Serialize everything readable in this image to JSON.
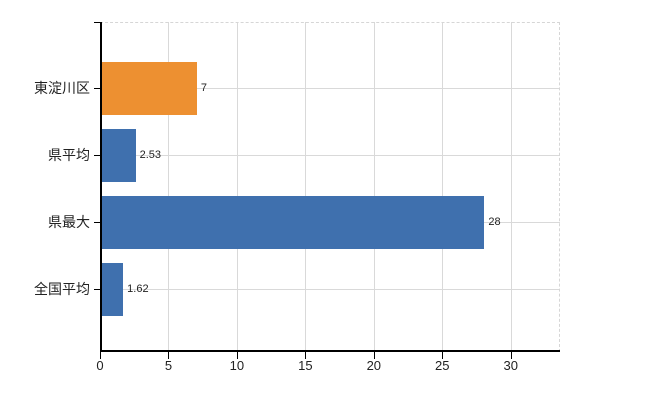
{
  "chart_data": {
    "type": "bar",
    "orientation": "horizontal",
    "title": "",
    "xlabel": "",
    "ylabel": "",
    "categories": [
      "東淀川区",
      "県平均",
      "県最大",
      "全国平均"
    ],
    "values": [
      7,
      2.53,
      28,
      1.62
    ],
    "value_labels": [
      "7",
      "2.53",
      "28",
      "1.62"
    ],
    "bar_colors": [
      "#ED9031",
      "#3F70AE",
      "#3F70AE",
      "#3F70AE"
    ],
    "x_ticks": [
      0,
      5,
      10,
      15,
      20,
      25,
      30
    ],
    "x_tick_labels": [
      "0",
      "5",
      "10",
      "15",
      "20",
      "25",
      "30"
    ],
    "xlim": [
      0,
      33.6
    ],
    "grid": true,
    "legend_position": "none",
    "colors": {
      "bar_orange": "#ED9031",
      "bar_blue": "#3F70AE",
      "grid": "#D9D9D9",
      "axis": "#000000",
      "text": "#222222",
      "background": "#FFFFFF"
    }
  }
}
